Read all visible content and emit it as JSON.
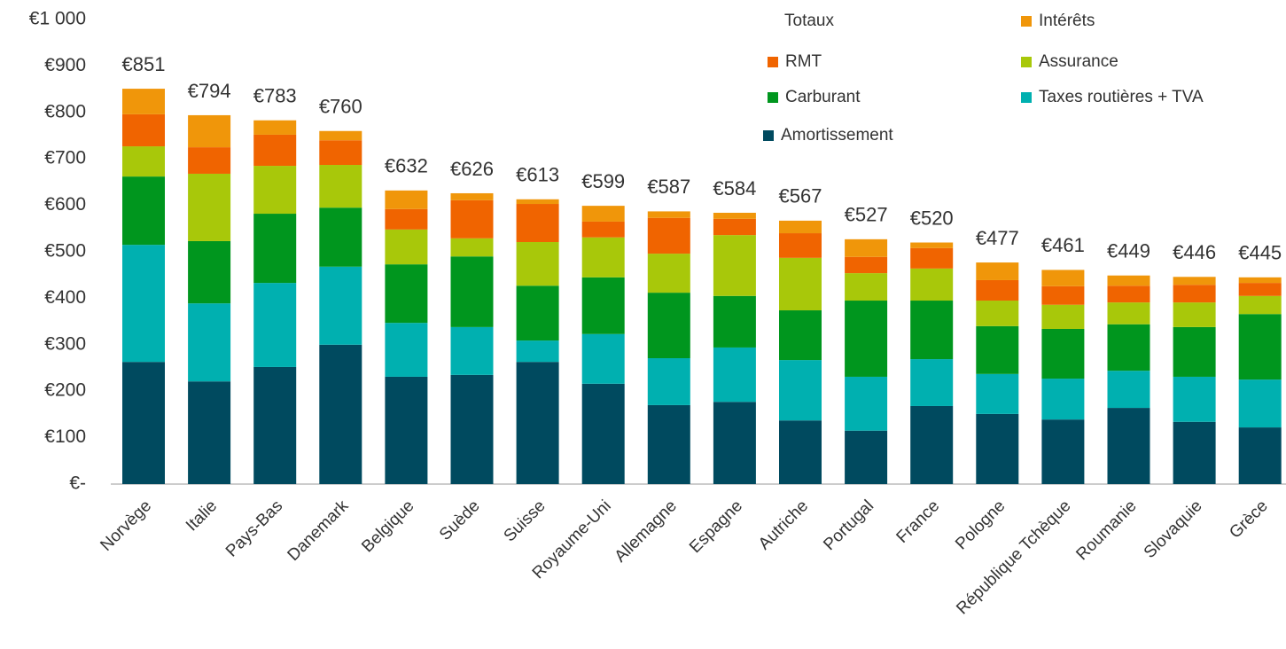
{
  "chart_data": {
    "type": "stacked-bar",
    "categories": [
      "Norvège",
      "Italie",
      "Pays-Bas",
      "Danemark",
      "Belgique",
      "Suède",
      "Suisse",
      "Royaume-Uni",
      "Allemagne",
      "Espagne",
      "Autriche",
      "Portugal",
      "France",
      "Pologne",
      "République Tchèque",
      "Roumanie",
      "Slovaquie",
      "Grèce"
    ],
    "series": [
      {
        "name": "Amortissement",
        "color": "#004a5f",
        "values": [
          263,
          221,
          252,
          300,
          231,
          235,
          263,
          216,
          170,
          177,
          137,
          115,
          168,
          151,
          139,
          164,
          134,
          122
        ]
      },
      {
        "name": "Taxes routières + TVA",
        "color": "#00b0b0",
        "values": [
          252,
          168,
          181,
          168,
          116,
          103,
          46,
          107,
          101,
          117,
          130,
          116,
          101,
          86,
          88,
          80,
          97,
          103
        ]
      },
      {
        "name": "Carburant",
        "color": "#00961e",
        "values": [
          147,
          134,
          149,
          127,
          126,
          152,
          118,
          122,
          141,
          111,
          107,
          164,
          126,
          103,
          107,
          100,
          107,
          141
        ]
      },
      {
        "name": "Assurance",
        "color": "#a8c80a",
        "values": [
          65,
          145,
          103,
          92,
          75,
          39,
          94,
          86,
          84,
          131,
          113,
          59,
          69,
          55,
          52,
          47,
          53,
          39
        ]
      },
      {
        "name": "RMT",
        "color": "#f06400",
        "values": [
          69,
          57,
          67,
          53,
          44,
          82,
          82,
          34,
          77,
          35,
          53,
          35,
          44,
          44,
          40,
          36,
          38,
          28
        ]
      },
      {
        "name": "Intérêts",
        "color": "#f0960a",
        "values": [
          55,
          69,
          31,
          20,
          40,
          15,
          10,
          34,
          14,
          13,
          27,
          38,
          12,
          38,
          35,
          22,
          17,
          12
        ]
      }
    ],
    "totals": {
      "name": "Totaux",
      "values": [
        851,
        794,
        783,
        760,
        632,
        626,
        613,
        599,
        587,
        584,
        567,
        527,
        520,
        477,
        461,
        449,
        446,
        445
      ],
      "value_labels": [
        "€851",
        "€794",
        "€783",
        "€760",
        "€632",
        "€626",
        "€613",
        "€599",
        "€587",
        "€584",
        "€567",
        "€527",
        "€520",
        "€477",
        "€461",
        "€449",
        "€446",
        "€445"
      ]
    },
    "ylim": [
      0,
      1000
    ],
    "yticks": [
      {
        "value": 0,
        "label": "€-"
      },
      {
        "value": 100,
        "label": "€100"
      },
      {
        "value": 200,
        "label": "€200"
      },
      {
        "value": 300,
        "label": "€300"
      },
      {
        "value": 400,
        "label": "€400"
      },
      {
        "value": 500,
        "label": "€500"
      },
      {
        "value": 600,
        "label": "€600"
      },
      {
        "value": 700,
        "label": "€700"
      },
      {
        "value": 800,
        "label": "€800"
      },
      {
        "value": 900,
        "label": "€900"
      },
      {
        "value": 1000,
        "label": "€1 000"
      }
    ],
    "grid": false
  }
}
